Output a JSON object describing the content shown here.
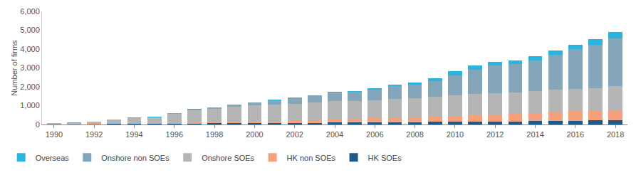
{
  "chart_data": {
    "type": "bar",
    "stacked": true,
    "grid": false,
    "legend": "bottom left",
    "y_label": "Number of firms",
    "x": [
      1990,
      1991,
      1992,
      1993,
      1994,
      1995,
      1996,
      1997,
      1998,
      1999,
      2000,
      2001,
      2002,
      2003,
      2004,
      2005,
      2006,
      2007,
      2008,
      2009,
      2010,
      2011,
      2012,
      2013,
      2014,
      2015,
      2016,
      2017,
      2018
    ],
    "xlim": [
      1989.4,
      2018.6
    ],
    "xticks": [
      1990,
      1992,
      1994,
      1996,
      1998,
      2000,
      2002,
      2004,
      2006,
      2008,
      2010,
      2012,
      2014,
      2016,
      2018
    ],
    "ylim": [
      0,
      6000
    ],
    "yticks": [
      0,
      {
        "value": 1000,
        "label": "1,000"
      },
      {
        "value": 2000,
        "label": "2,000"
      },
      {
        "value": 3000,
        "label": "3,000"
      },
      {
        "value": 4000,
        "label": "4,000"
      },
      {
        "value": 5000,
        "label": "5,000"
      },
      {
        "value": 6000,
        "label": "6,000"
      }
    ],
    "series": [
      {
        "name": "HK SOEs",
        "color": "#1d5a8a",
        "values": [
          5,
          5,
          10,
          20,
          25,
          30,
          40,
          55,
          60,
          65,
          70,
          75,
          80,
          90,
          100,
          110,
          120,
          130,
          130,
          140,
          150,
          155,
          160,
          170,
          180,
          190,
          200,
          210,
          220
        ]
      },
      {
        "name": "HK non SOEs",
        "color": "#f5a27c",
        "values": [
          10,
          10,
          20,
          30,
          40,
          45,
          50,
          60,
          65,
          75,
          85,
          95,
          110,
          140,
          170,
          180,
          220,
          250,
          260,
          270,
          300,
          340,
          380,
          400,
          430,
          490,
          520,
          540,
          550
        ]
      },
      {
        "name": "Onshore SOEs",
        "color": "#b5b5b5",
        "values": [
          50,
          70,
          120,
          200,
          270,
          290,
          470,
          640,
          720,
          820,
          880,
          890,
          920,
          940,
          970,
          960,
          950,
          970,
          1000,
          1050,
          1090,
          1110,
          1110,
          1130,
          1150,
          1160,
          1180,
          1190,
          1260
        ]
      },
      {
        "name": "Onshore non SOEs",
        "color": "#84a6ba",
        "values": [
          10,
          10,
          15,
          20,
          25,
          25,
          40,
          55,
          65,
          85,
          130,
          240,
          310,
          370,
          450,
          480,
          570,
          700,
          720,
          860,
          1080,
          1300,
          1470,
          1510,
          1640,
          1870,
          2110,
          2280,
          2530
        ]
      },
      {
        "name": "Overseas",
        "color": "#2ab5e0",
        "values": [
          5,
          5,
          5,
          10,
          10,
          10,
          10,
          10,
          10,
          15,
          15,
          20,
          20,
          20,
          30,
          40,
          60,
          80,
          120,
          150,
          220,
          235,
          200,
          190,
          220,
          220,
          230,
          310,
          360
        ]
      }
    ]
  }
}
